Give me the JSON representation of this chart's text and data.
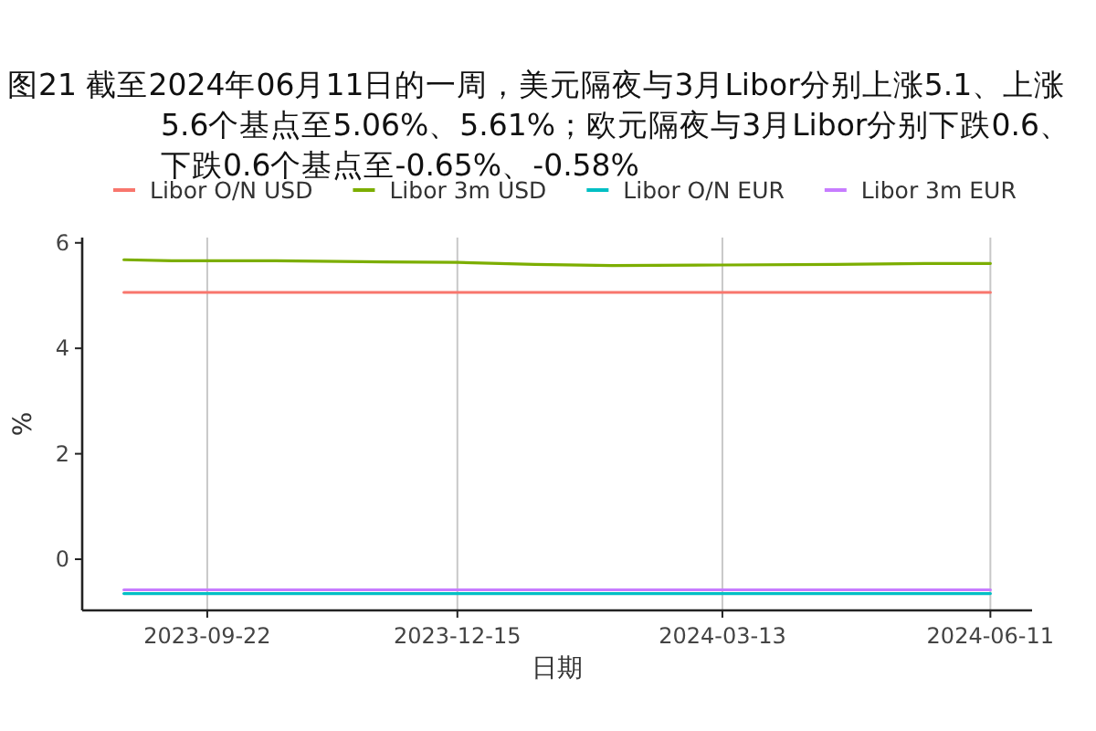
{
  "chart_data": {
    "type": "line",
    "title": "图21  截至2024年06月11日的一周，美元隔夜与3月Libor分别上涨5.1、上涨5.6个基点至5.06%、5.61%；欧元隔夜与3月Libor分别下跌0.6、下跌0.6个基点至-0.65%、-0.58%",
    "xlabel": "日期",
    "ylabel": "%",
    "legend": "top",
    "grid": "x",
    "marker": "none",
    "line_style": "solid",
    "xlim": [
      "2023-08-11",
      "2024-06-25"
    ],
    "ylim": [
      -0.97,
      6.1
    ],
    "xticks": [
      "2023-09-22",
      "2023-12-15",
      "2024-03-13",
      "2024-06-11"
    ],
    "yticks": [
      0,
      2,
      4,
      6
    ],
    "series": [
      {
        "name": "Libor O/N USD",
        "color": "#f8766d",
        "x": [
          "2023-08-25",
          "2024-06-11"
        ],
        "values": [
          5.06,
          5.06
        ]
      },
      {
        "name": "Libor 3m USD",
        "color": "#7cae00",
        "x": [
          "2023-08-25",
          "2023-09-10",
          "2023-10-15",
          "2023-11-20",
          "2023-12-15",
          "2024-01-10",
          "2024-02-05",
          "2024-03-13",
          "2024-04-20",
          "2024-05-20",
          "2024-06-11"
        ],
        "values": [
          5.68,
          5.66,
          5.66,
          5.64,
          5.63,
          5.59,
          5.57,
          5.58,
          5.59,
          5.61,
          5.61
        ]
      },
      {
        "name": "Libor O/N EUR",
        "color": "#00bfc4",
        "x": [
          "2023-08-25",
          "2024-06-11"
        ],
        "values": [
          -0.65,
          -0.65
        ]
      },
      {
        "name": "Libor 3m EUR",
        "color": "#c77cff",
        "x": [
          "2023-08-25",
          "2024-06-11"
        ],
        "values": [
          -0.58,
          -0.58
        ]
      }
    ]
  }
}
